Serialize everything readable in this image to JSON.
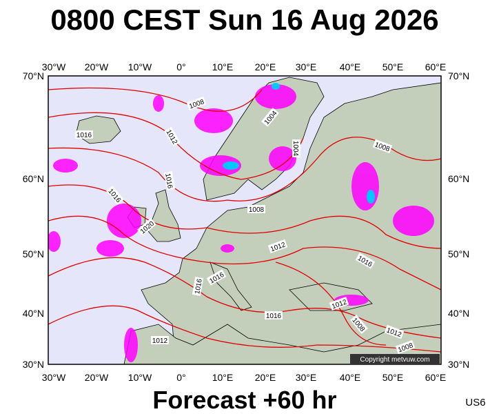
{
  "header": {
    "title": "0800 CEST Sun 16 Aug 2026"
  },
  "footer": {
    "forecast": "Forecast +60 hr",
    "model": "US6"
  },
  "copyright": "Copyright metvuw.com",
  "lon_labels": [
    "30°W",
    "20°W",
    "10°W",
    "0°",
    "10°E",
    "20°E",
    "30°E",
    "40°E",
    "50°E",
    "60°E"
  ],
  "lat_labels": [
    "70°N",
    "60°N",
    "50°N",
    "40°N",
    "30°N"
  ],
  "isobar_labels": [
    "1008",
    "1016",
    "1012",
    "1004",
    "1004",
    "1008",
    "1016",
    "1016",
    "1008",
    "1020",
    "1012",
    "1016",
    "1016",
    "1016",
    "1012",
    "1016",
    "1008",
    "1012",
    "1012",
    "1008"
  ]
}
